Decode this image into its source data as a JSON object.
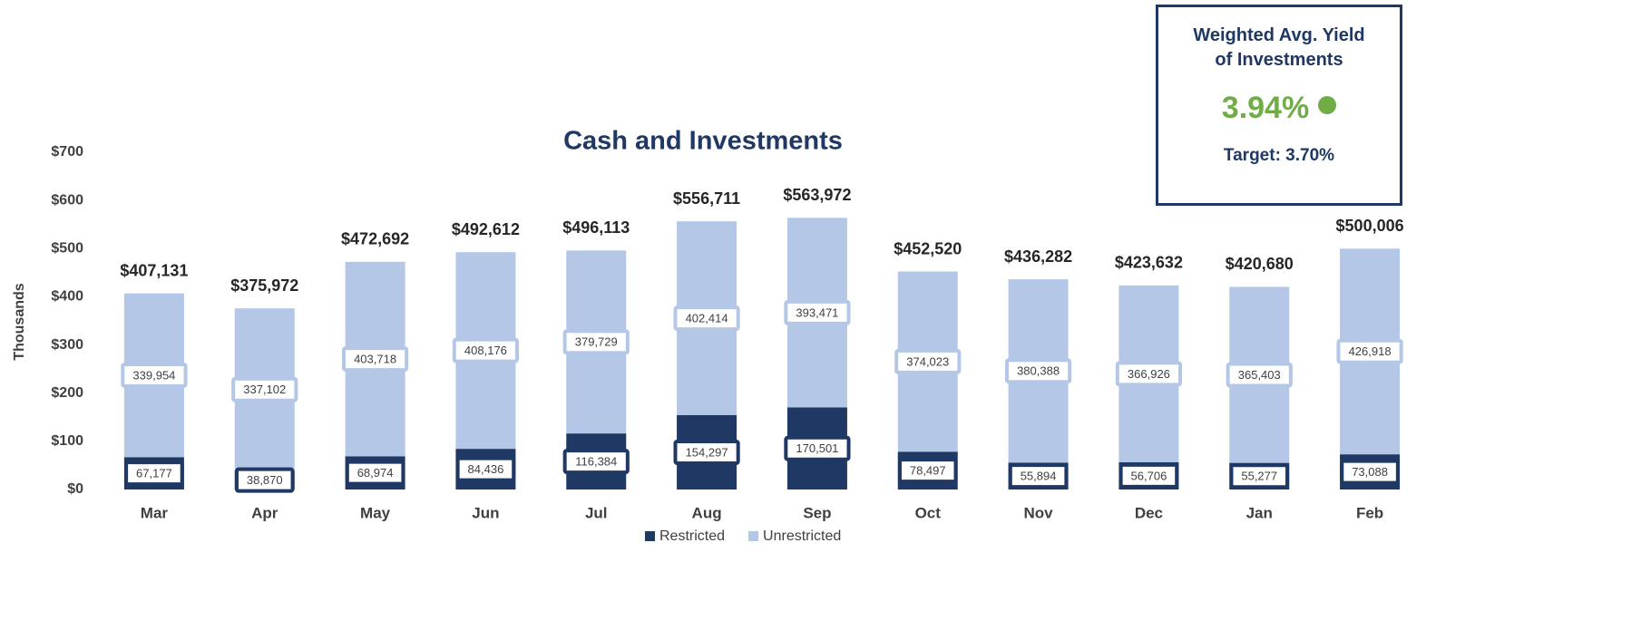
{
  "chart_data": {
    "type": "stacked_bar",
    "title": "Cash and Investments",
    "y_label": "Thousands",
    "categories": [
      "Mar",
      "Apr",
      "May",
      "Jun",
      "Jul",
      "Aug",
      "Sep",
      "Oct",
      "Nov",
      "Dec",
      "Jan",
      "Feb"
    ],
    "series": [
      {
        "name": "Restricted",
        "color": "#1f3864",
        "values": [
          67177,
          38870,
          68974,
          84436,
          116384,
          154297,
          170501,
          78497,
          55894,
          56706,
          55277,
          73088
        ],
        "value_labels": [
          "67,177",
          "38,870",
          "68,974",
          "84,436",
          "116,384",
          "154,297",
          "170,501",
          "78,497",
          "55,894",
          "56,706",
          "55,277",
          "73,088"
        ]
      },
      {
        "name": "Unrestricted",
        "color": "#b4c7e7",
        "values": [
          339954,
          337102,
          403718,
          408176,
          379729,
          402414,
          393471,
          374023,
          380388,
          366926,
          365403,
          426918
        ],
        "value_labels": [
          "339,954",
          "337,102",
          "403,718",
          "408,176",
          "379,729",
          "402,414",
          "393,471",
          "374,023",
          "380,388",
          "366,926",
          "365,403",
          "426,918"
        ]
      }
    ],
    "totals": {
      "values": [
        407131,
        375972,
        472692,
        492612,
        496113,
        556711,
        563972,
        452520,
        436282,
        423632,
        420680,
        500006
      ],
      "value_labels": [
        "$407,131",
        "$375,972",
        "$472,692",
        "$492,612",
        "$496,113",
        "$556,711",
        "$563,972",
        "$452,520",
        "$436,282",
        "$423,632",
        "$420,680",
        "$500,006"
      ]
    },
    "ylim": [
      0,
      700000
    ],
    "yticks": [
      {
        "value": 0,
        "label": "$0"
      },
      {
        "value": 100000,
        "label": "$100"
      },
      {
        "value": 200000,
        "label": "$200"
      },
      {
        "value": 300000,
        "label": "$300"
      },
      {
        "value": 400000,
        "label": "$400"
      },
      {
        "value": 500000,
        "label": "$500"
      },
      {
        "value": 600000,
        "label": "$600"
      },
      {
        "value": 700000,
        "label": "$700"
      }
    ],
    "grid": false,
    "legend": "bottom"
  },
  "kpi": {
    "title": "Weighted Avg. Yield of Investments",
    "value": "3.94%",
    "value_color": "#70ad47",
    "target": "Target: 3.70%"
  }
}
